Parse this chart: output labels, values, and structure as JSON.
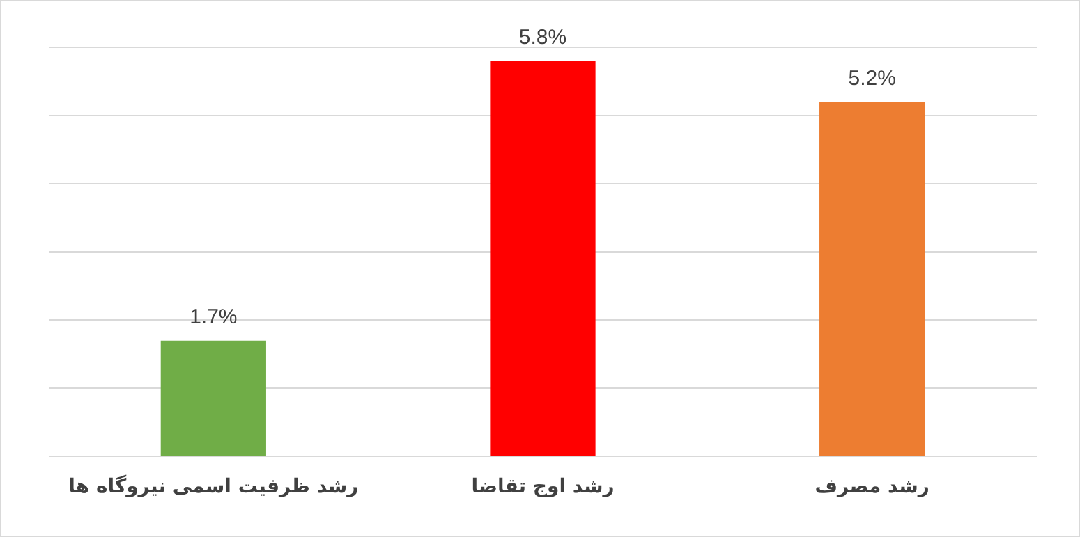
{
  "chart_data": {
    "type": "bar",
    "categories": [
      "رشد ظرفیت اسمی نیروگاه ها",
      "رشد اوج تقاضا",
      "رشد مصرف"
    ],
    "values": [
      1.7,
      5.8,
      5.2
    ],
    "colors": [
      "#70ad47",
      "#ff0000",
      "#ed7d31"
    ],
    "value_labels": [
      "1.7%",
      "5.8%",
      "5.2%"
    ],
    "grid": "y",
    "tick_labels": "x",
    "legend": false
  }
}
